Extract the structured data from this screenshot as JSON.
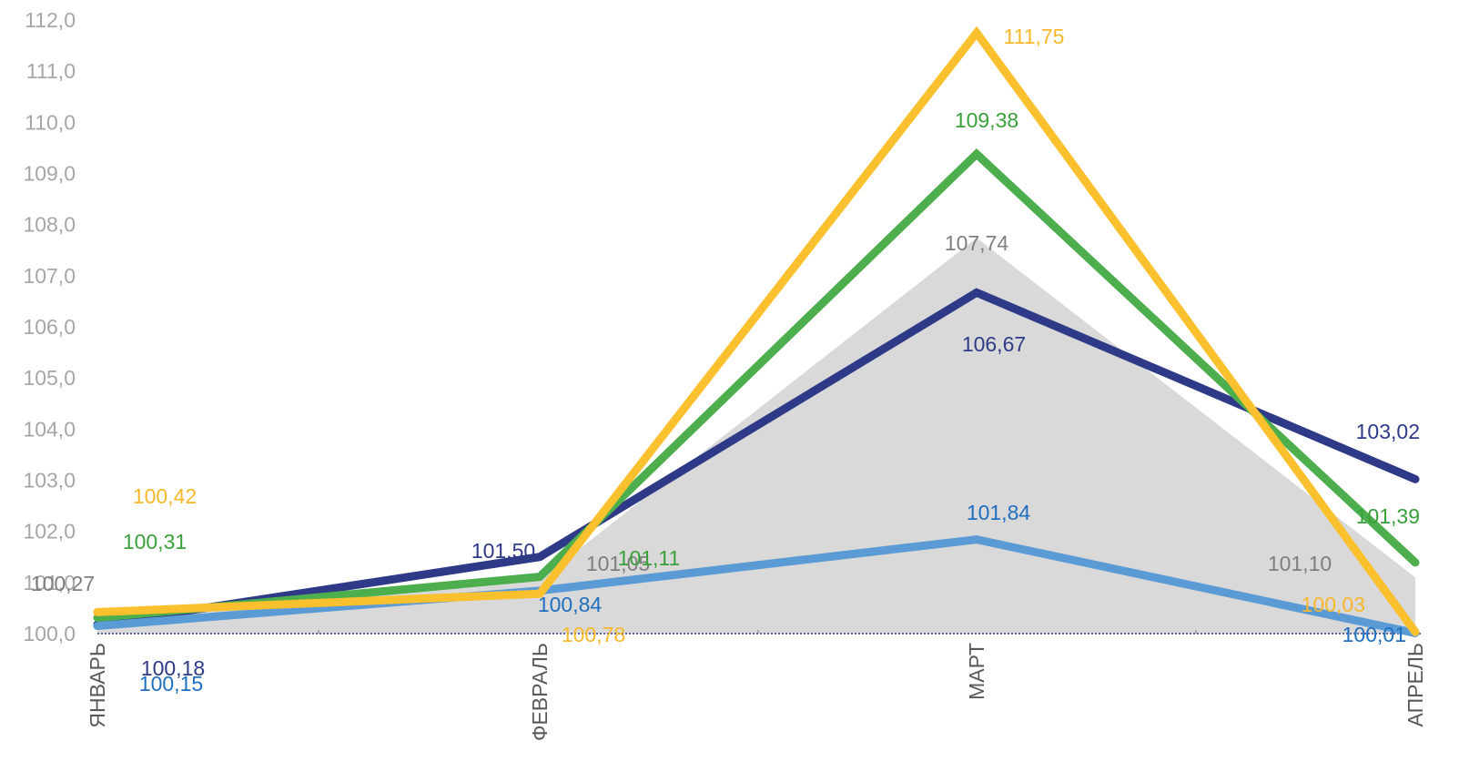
{
  "chart_data": {
    "type": "line",
    "categories": [
      "ЯНВАРЬ",
      "ФЕВРАЛЬ",
      "МАРТ",
      "АПРЕЛЬ"
    ],
    "ylim": [
      100.0,
      112.0
    ],
    "yticks": [
      "100,0",
      "101,0",
      "102,0",
      "103,0",
      "104,0",
      "105,0",
      "106,0",
      "107,0",
      "108,0",
      "109,0",
      "110,0",
      "111,0",
      "112,0"
    ],
    "grid": false,
    "legend": "none",
    "area": {
      "color": "#d9d9d9",
      "label_color": "#7f7f7f",
      "values": [
        100.27,
        101.05,
        107.74,
        101.1
      ],
      "labels": [
        "100,27",
        "101,05",
        "107,74",
        "101,10"
      ]
    },
    "series": [
      {
        "color": "#2e3a87",
        "label_color": "#2e3a87",
        "values": [
          100.18,
          101.5,
          106.67,
          103.02
        ],
        "labels": [
          "100,18",
          "101,50",
          "106,67",
          "103,02"
        ]
      },
      {
        "color": "#4cae4c",
        "label_color": "#3aa03a",
        "values": [
          100.31,
          101.11,
          109.38,
          101.39
        ],
        "labels": [
          "100,31",
          "101,11",
          "109,38",
          "101,39"
        ]
      },
      {
        "color": "#5b9bd5",
        "label_color": "#1f6fc0",
        "values": [
          100.15,
          100.84,
          101.84,
          100.01
        ],
        "labels": [
          "100,15",
          "100,84",
          "101,84",
          "100,01"
        ]
      },
      {
        "color": "#fbc02d",
        "label_color": "#f9b82b",
        "values": [
          100.42,
          100.78,
          111.75,
          100.03
        ],
        "labels": [
          "100,42",
          "100,78",
          "111,75",
          "100,03"
        ]
      }
    ]
  }
}
